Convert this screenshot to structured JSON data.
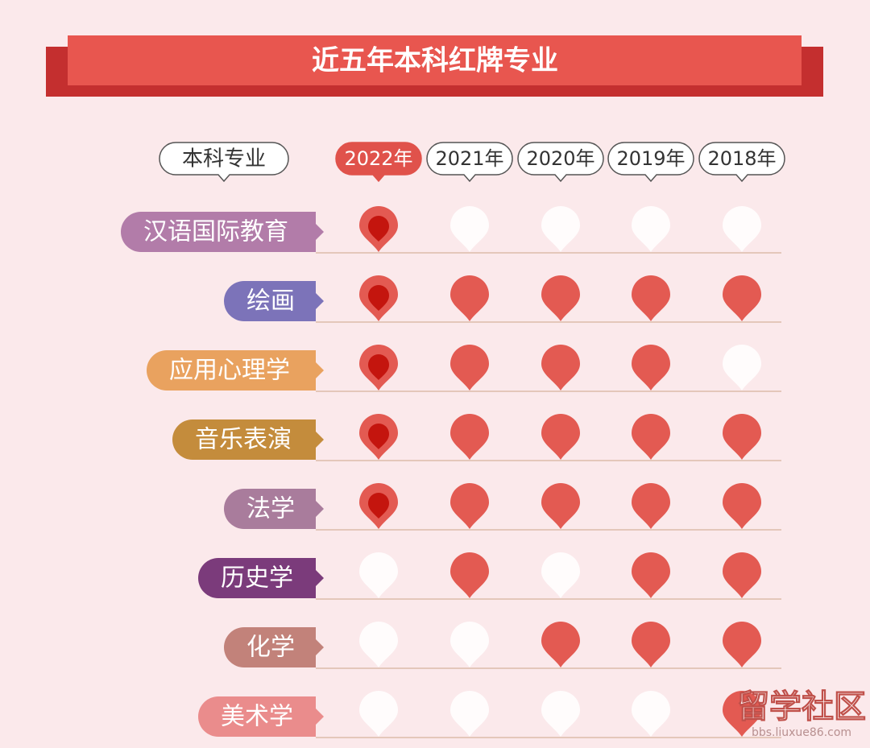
{
  "header": {
    "title": "近五年本科红牌专业"
  },
  "table": {
    "corner": "本科专业",
    "columns": [
      "2022年",
      "2021年",
      "2020年",
      "2019年",
      "2018年"
    ],
    "highlight_column": 0,
    "rows": [
      {
        "name": "汉语国际教育",
        "color": "#b27ca9",
        "flags": [
          true,
          false,
          false,
          false,
          false
        ]
      },
      {
        "name": "绘画",
        "color": "#7c73b9",
        "flags": [
          true,
          true,
          true,
          true,
          true
        ]
      },
      {
        "name": "应用心理学",
        "color": "#e9a25f",
        "flags": [
          true,
          true,
          true,
          true,
          false
        ]
      },
      {
        "name": "音乐表演",
        "color": "#c48c3c",
        "flags": [
          true,
          true,
          true,
          true,
          true
        ]
      },
      {
        "name": "法学",
        "color": "#a97c9c",
        "flags": [
          true,
          true,
          true,
          true,
          true
        ]
      },
      {
        "name": "历史学",
        "color": "#7b3b7b",
        "flags": [
          false,
          true,
          false,
          true,
          true
        ]
      },
      {
        "name": "化学",
        "color": "#c2827a",
        "flags": [
          false,
          false,
          true,
          true,
          true
        ]
      },
      {
        "name": "美术学",
        "color": "#ea8c8c",
        "flags": [
          false,
          false,
          false,
          false,
          true
        ]
      }
    ]
  },
  "watermark": {
    "text": "留学社区",
    "url": "bbs.liuxue86.com"
  }
}
